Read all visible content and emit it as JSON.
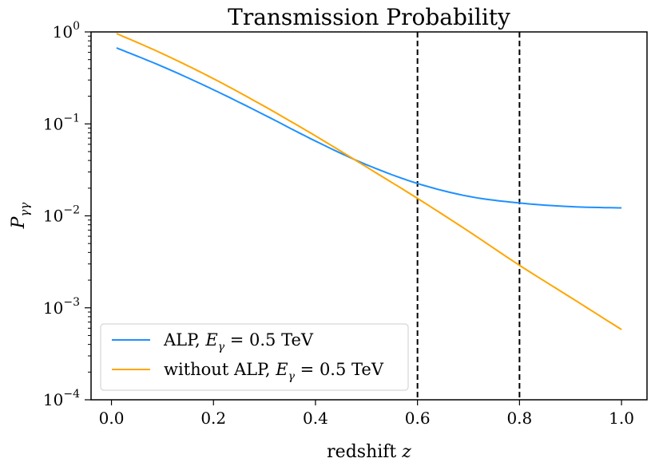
{
  "chart_data": {
    "type": "line",
    "title": "Transmission Probability",
    "xlabel": "redshift z",
    "ylabel": "P_γγ",
    "xscale": "linear",
    "yscale": "log",
    "xlim": [
      -0.04,
      1.05
    ],
    "ylim": [
      0.0001,
      1
    ],
    "x_ticks": [
      {
        "value": 0.0,
        "label": "0.0"
      },
      {
        "value": 0.2,
        "label": "0.2"
      },
      {
        "value": 0.4,
        "label": "0.4"
      },
      {
        "value": 0.6,
        "label": "0.6"
      },
      {
        "value": 0.8,
        "label": "0.8"
      },
      {
        "value": 1.0,
        "label": "1.0"
      }
    ],
    "y_ticks": [
      {
        "value": 1,
        "base": "10",
        "exp": "0"
      },
      {
        "value": 0.1,
        "base": "10",
        "exp": "−1"
      },
      {
        "value": 0.01,
        "base": "10",
        "exp": "−2"
      },
      {
        "value": 0.001,
        "base": "10",
        "exp": "−3"
      },
      {
        "value": 0.0001,
        "base": "10",
        "exp": "−4"
      }
    ],
    "vlines": [
      0.6,
      0.8
    ],
    "legend_position": "lower-left",
    "series": [
      {
        "name": "ALP, E_γ = 0.5 TeV",
        "color": "#1e90ff",
        "x": [
          0.01,
          0.1,
          0.2,
          0.3,
          0.4,
          0.5,
          0.6,
          0.7,
          0.8,
          0.9,
          1.0
        ],
        "y": [
          0.67,
          0.42,
          0.235,
          0.125,
          0.065,
          0.036,
          0.0225,
          0.0163,
          0.0138,
          0.0126,
          0.0122
        ]
      },
      {
        "name": "without ALP, E_γ = 0.5 TeV",
        "color": "#ffa500",
        "x": [
          0.01,
          0.1,
          0.2,
          0.3,
          0.4,
          0.5,
          0.6,
          0.7,
          0.8,
          0.9,
          1.0
        ],
        "y": [
          0.96,
          0.58,
          0.31,
          0.155,
          0.074,
          0.034,
          0.0155,
          0.0068,
          0.0029,
          0.0013,
          0.00058
        ]
      }
    ]
  },
  "legend": {
    "items": [
      {
        "prefix": "ALP, ",
        "var": "E",
        "sub": "γ",
        "suffix": " = 0.5 TeV"
      },
      {
        "prefix": "without ALP, ",
        "var": "E",
        "sub": "γ",
        "suffix": " = 0.5 TeV"
      }
    ]
  },
  "labels": {
    "xlabel_text": "redshift ",
    "xlabel_var": "z",
    "ylabel_var": "P",
    "ylabel_sub": "γγ"
  }
}
